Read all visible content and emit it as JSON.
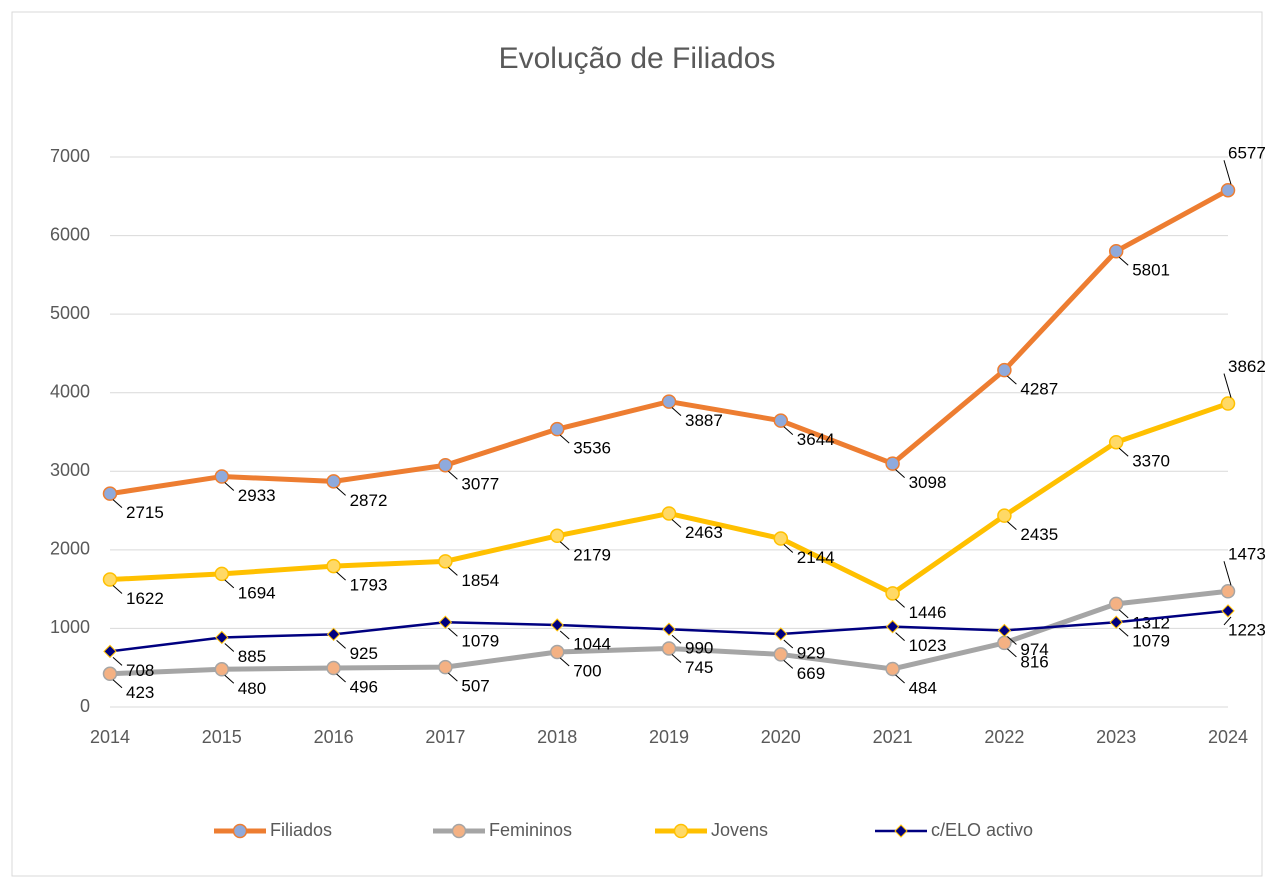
{
  "chart_data": {
    "type": "line",
    "title": "Evolução de Filiados",
    "categories": [
      "2014",
      "2015",
      "2016",
      "2017",
      "2018",
      "2019",
      "2020",
      "2021",
      "2022",
      "2023",
      "2024"
    ],
    "series": [
      {
        "name": "Filiados",
        "color": "#ED7D31",
        "marker": "circle",
        "marker_fill": "#8FAADC",
        "values": [
          2715,
          2933,
          2872,
          3077,
          3536,
          3887,
          3644,
          3098,
          4287,
          5801,
          6577
        ]
      },
      {
        "name": "Femininos",
        "color": "#A5A5A5",
        "marker": "circle",
        "marker_fill": "#F4B183",
        "values": [
          423,
          480,
          496,
          507,
          700,
          745,
          669,
          484,
          816,
          1312,
          1473
        ]
      },
      {
        "name": "Jovens",
        "color": "#FFC000",
        "marker": "circle",
        "marker_fill": "#FFD966",
        "values": [
          1622,
          1694,
          1793,
          1854,
          2179,
          2463,
          2144,
          1446,
          2435,
          3370,
          3862
        ]
      },
      {
        "name": "c/ELO activo",
        "color": "#000080",
        "marker": "diamond",
        "marker_fill": "#000080",
        "values": [
          708,
          885,
          925,
          1079,
          1044,
          990,
          929,
          1023,
          974,
          1079,
          1223
        ]
      }
    ],
    "ylim": [
      0,
      7000
    ],
    "yticks": [
      0,
      1000,
      2000,
      3000,
      4000,
      5000,
      6000,
      7000
    ],
    "grid": true,
    "legend": "bottom"
  }
}
